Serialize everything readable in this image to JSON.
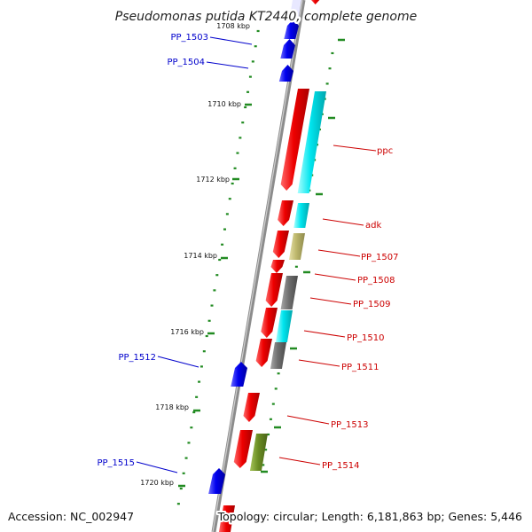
{
  "title": "Pseudomonas putida KT2440, complete genome",
  "footer": {
    "accession": "Accession: NC_002947",
    "topology": "Topology: circular; Length: 6,181,863 bp; Genes: 5,446"
  },
  "colors": {
    "backbone": "#8c8c8c",
    "forward_strand": "#0000ee",
    "reverse_strand": "#ee0000",
    "cyan_feature": "#00e5ee",
    "khaki_feature": "#bdb76b",
    "gray_feature": "#707070",
    "olive_feature": "#6b8e23",
    "ticks": "#228b22",
    "label_forward": "#0000cc",
    "label_reverse": "#cc0000"
  },
  "ticks": [
    "1708 kbp",
    "1710 kbp",
    "1712 kbp",
    "1714 kbp",
    "1716 kbp",
    "1718 kbp",
    "1720 kbp"
  ],
  "genes": [
    {
      "label": "PP_1503",
      "strand": "forward"
    },
    {
      "label": "PP_1504",
      "strand": "forward"
    },
    {
      "label": "ppc",
      "strand": "reverse"
    },
    {
      "label": "adk",
      "strand": "reverse"
    },
    {
      "label": "PP_1507",
      "strand": "reverse"
    },
    {
      "label": "PP_1508",
      "strand": "reverse"
    },
    {
      "label": "PP_1509",
      "strand": "reverse"
    },
    {
      "label": "PP_1510",
      "strand": "reverse"
    },
    {
      "label": "PP_1511",
      "strand": "reverse"
    },
    {
      "label": "PP_1512",
      "strand": "forward"
    },
    {
      "label": "PP_1513",
      "strand": "reverse"
    },
    {
      "label": "PP_1514",
      "strand": "reverse"
    },
    {
      "label": "PP_1515",
      "strand": "forward"
    }
  ]
}
